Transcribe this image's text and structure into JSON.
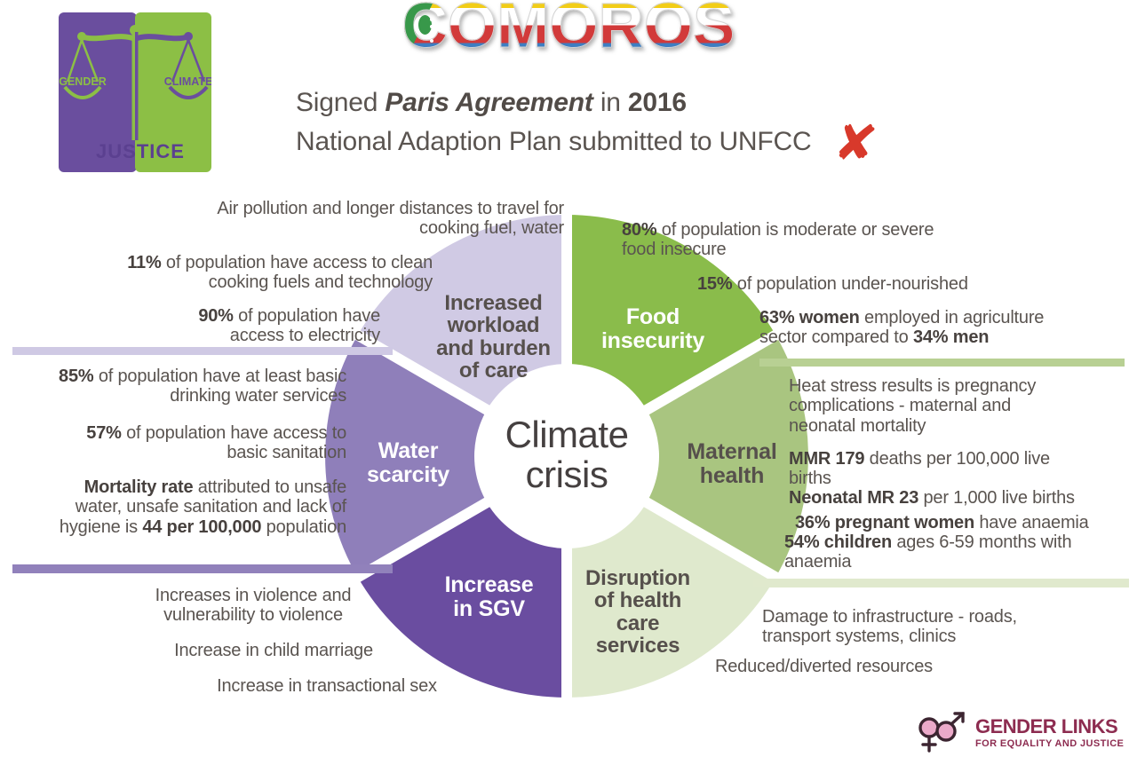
{
  "title": {
    "first_letter": "C",
    "rest": "OMOROS"
  },
  "header": {
    "signed_prefix": "Signed ",
    "agreement": "Paris Agreement",
    "in_word": " in ",
    "year": "2016",
    "nap_line": "National Adaption Plan submitted to UNFCC",
    "x_mark": "✘"
  },
  "gj_logo": {
    "left_word": "GENDER",
    "right_word": "CLIMATE",
    "bottom_word": "JUSTICE",
    "purple": "#6a4e9e",
    "green": "#8cbf45"
  },
  "wheel": {
    "center_label": "Climate\ncrisis",
    "segments": [
      {
        "id": "food-insecurity",
        "label": "Food\ninsecurity",
        "color": "#8abc4b",
        "text_color": "#ffffff"
      },
      {
        "id": "maternal-health",
        "label": "Maternal\nhealth",
        "color": "#a9c580",
        "text_color": "#56504c"
      },
      {
        "id": "health-services",
        "label": "Disruption\nof health\ncare\nservices",
        "color": "#dfe9cd",
        "text_color": "#56504c"
      },
      {
        "id": "increase-in-sgv",
        "label": "Increase\nin SGV",
        "color": "#6a4da0",
        "text_color": "#ffffff"
      },
      {
        "id": "water-scarcity",
        "label": "Water\nscarcity",
        "color": "#8f7fba",
        "text_color": "#ffffff"
      },
      {
        "id": "workload",
        "label": "Increased\nworkload\nand burden\nof care",
        "color": "#d0cae4",
        "text_color": "#56504c"
      }
    ]
  },
  "bars": {
    "nw": "#cfc9e4",
    "ne": "#b8d093",
    "sw": "#9181bb",
    "se": "#e0e9cd"
  },
  "stats": {
    "workload": [
      [
        {
          "t": "Air pollution and longer distances to travel for cooking fuel, water"
        }
      ],
      [
        {
          "t": "11%",
          "b": true
        },
        {
          "t": " of population have access to clean cooking fuels and technology"
        }
      ],
      [
        {
          "t": "90%",
          "b": true
        },
        {
          "t": " of population have access to electricity"
        }
      ]
    ],
    "food": [
      [
        {
          "t": "80%",
          "b": true
        },
        {
          "t": " of population is moderate or severe food insecure"
        }
      ],
      [
        {
          "t": "15%",
          "b": true
        },
        {
          "t": " of population under-nourished"
        }
      ],
      [
        {
          "t": "63% women",
          "b": true
        },
        {
          "t": " employed in agriculture sector compared to "
        },
        {
          "t": "34% men",
          "b": true
        }
      ]
    ],
    "water": [
      [
        {
          "t": "85%",
          "b": true
        },
        {
          "t": " of population have at least basic drinking water services"
        }
      ],
      [
        {
          "t": "57%",
          "b": true
        },
        {
          "t": " of population have access to basic sanitation"
        }
      ],
      [
        {
          "t": "Mortality rate",
          "b": true
        },
        {
          "t": " attributed to unsafe water, unsafe sanitation and lack of hygiene is "
        },
        {
          "t": "44 per 100,000",
          "b": true
        },
        {
          "t": " population"
        }
      ]
    ],
    "maternal": [
      [
        {
          "t": "Heat stress results is pregnancy complications - maternal and neonatal mortality"
        }
      ],
      [
        {
          "t": "MMR 179",
          "b": true
        },
        {
          "t": " deaths per 100,000 live births"
        }
      ],
      [
        {
          "t": "Neonatal MR 23",
          "b": true
        },
        {
          "t": " per 1,000 live births"
        }
      ],
      [
        {
          "t": "36% pregnant women",
          "b": true
        },
        {
          "t": " have anaemia"
        }
      ],
      [
        {
          "t": "54% children",
          "b": true
        },
        {
          "t": " ages 6-59 months with anaemia"
        }
      ]
    ],
    "sgv": [
      [
        {
          "t": "Increases in violence and vulnerability to violence"
        }
      ],
      [
        {
          "t": "Increase in child marriage"
        }
      ],
      [
        {
          "t": "Increase in transactional sex"
        }
      ]
    ],
    "health_services": [
      [
        {
          "t": "Damage to infrastructure - roads, transport systems, clinics"
        }
      ],
      [
        {
          "t": "Reduced/diverted resources"
        }
      ]
    ]
  },
  "footer": {
    "org": "GENDER LINKS",
    "tagline": "FOR EQUALITY AND JUSTICE"
  }
}
